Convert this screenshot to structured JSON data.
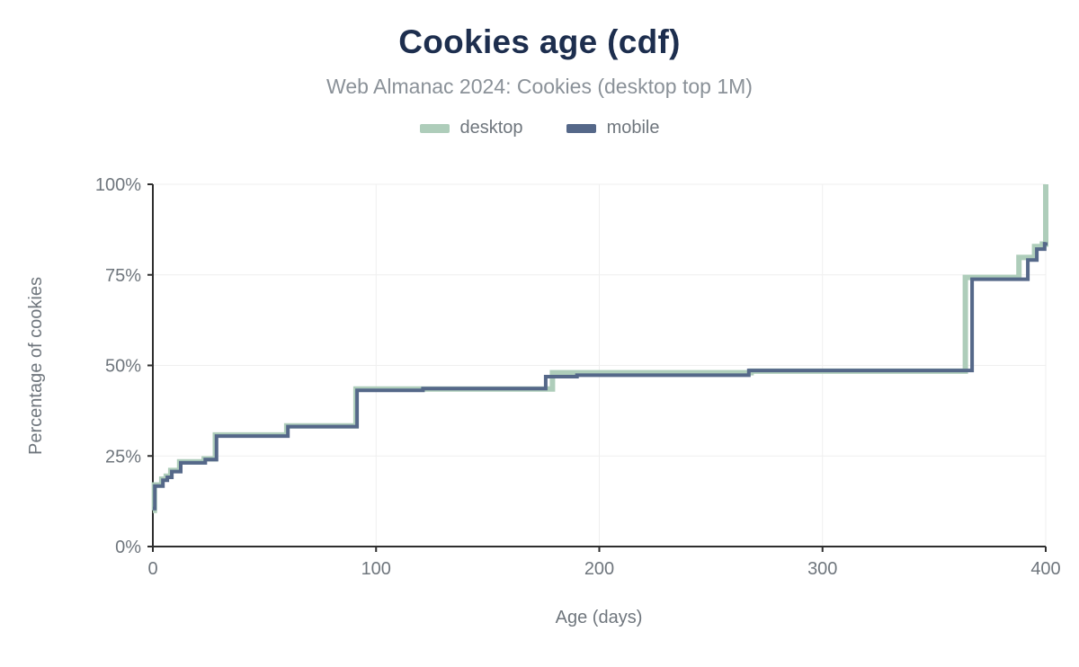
{
  "theme": {
    "title_color": "#1D2E4E",
    "subtitle_color": "#8A9198",
    "text_color": "#6F767D",
    "grid_color": "#EFEFEF",
    "axis_color": "#2E2E2E",
    "background": "#FFFFFF"
  },
  "chart_data": {
    "type": "line",
    "style": "step-cdf",
    "title": "Cookies age (cdf)",
    "subtitle": "Web Almanac 2024: Cookies (desktop top 1M)",
    "xlabel": "Age (days)",
    "ylabel": "Percentage of cookies",
    "xlim": [
      0,
      400
    ],
    "ylim": [
      0,
      100
    ],
    "x_ticks": [
      0,
      100,
      200,
      300,
      400
    ],
    "y_ticks": [
      0,
      25,
      50,
      75,
      100
    ],
    "y_tick_suffix": "%",
    "grid": true,
    "legend_position": "top",
    "series": [
      {
        "name": "desktop",
        "color": "#AECDBA",
        "width": 6,
        "points": [
          [
            0,
            10.0
          ],
          [
            0.7,
            17.0
          ],
          [
            4,
            18.6
          ],
          [
            6,
            19.4
          ],
          [
            8,
            21.0
          ],
          [
            12,
            23.4
          ],
          [
            23,
            24.2
          ],
          [
            28,
            30.8
          ],
          [
            60,
            33.3
          ],
          [
            91,
            43.5
          ],
          [
            179,
            48.0
          ],
          [
            268,
            48.4
          ],
          [
            364,
            74.3
          ],
          [
            388,
            79.8
          ],
          [
            395,
            82.8
          ],
          [
            398.5,
            83.5
          ],
          [
            400,
            100
          ]
        ]
      },
      {
        "name": "mobile",
        "color": "#556889",
        "width": 4,
        "points": [
          [
            0,
            10.5
          ],
          [
            0.9,
            16.7
          ],
          [
            4.5,
            18.3
          ],
          [
            6.5,
            19.1
          ],
          [
            8.5,
            20.7
          ],
          [
            12.5,
            23.1
          ],
          [
            23.5,
            24.0
          ],
          [
            28.5,
            30.5
          ],
          [
            60.5,
            33.1
          ],
          [
            91.5,
            43.1
          ],
          [
            121,
            43.6
          ],
          [
            176,
            46.9
          ],
          [
            190,
            47.3
          ],
          [
            267,
            48.6
          ],
          [
            367,
            73.8
          ],
          [
            392,
            79.1
          ],
          [
            396,
            82.1
          ],
          [
            399.5,
            83.6
          ],
          [
            400,
            84.0
          ]
        ]
      }
    ]
  }
}
